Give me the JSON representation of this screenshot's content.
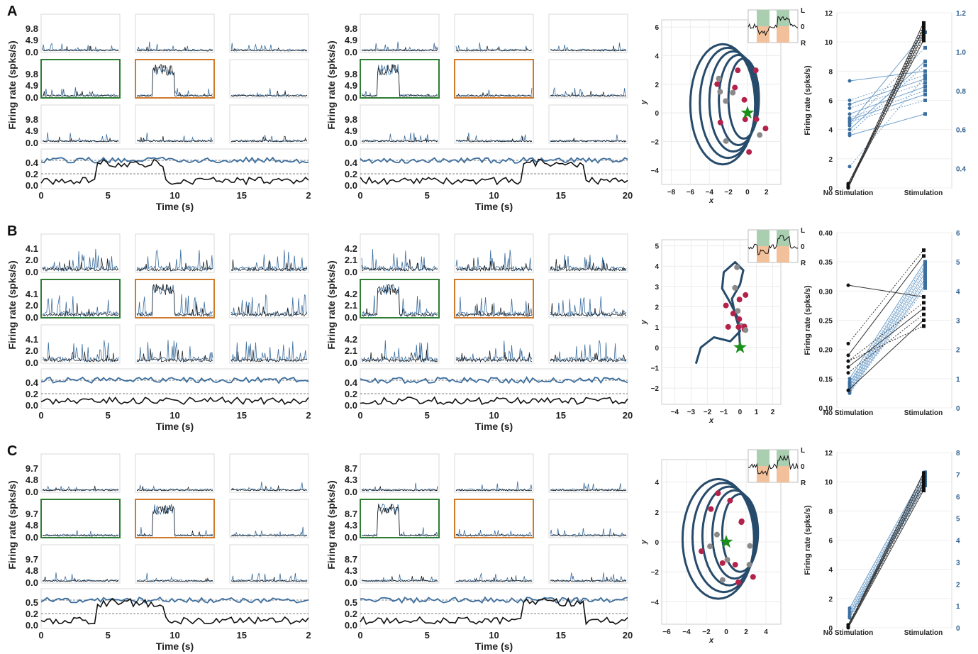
{
  "panels": [
    "A",
    "B",
    "C"
  ],
  "raster": {
    "ylabel": "Firing rate (spks/s)",
    "xlabel": "Time (s)",
    "x_ticks_left": [
      "0",
      "5",
      "10",
      "15",
      "2"
    ],
    "x_ticks_right": [
      "0",
      "5",
      "10",
      "15",
      "20"
    ],
    "bottom_ticks": {
      "A": [
        "0.4",
        "0.2",
        "0.0"
      ],
      "B": [
        "0.4",
        "0.2",
        "0.0"
      ],
      "C": [
        "0.5",
        "0.2",
        "0.0"
      ]
    },
    "grid_ticks": {
      "A_left": [
        "9.8",
        "4.9",
        "0.0"
      ],
      "A_right": [
        "9.8",
        "4.9",
        "0.0"
      ],
      "B_left": [
        "4.1",
        "2.0",
        "0.0"
      ],
      "B_right": [
        "4.2",
        "2.1",
        "0.0"
      ],
      "C_left": [
        "9.7",
        "4.8",
        "0.0"
      ],
      "C_right": [
        "8.7",
        "4.3",
        "0.0"
      ]
    },
    "colors": {
      "blue": "#3c6e9e",
      "black": "#111111",
      "green": "#2e7d32",
      "orange": "#d07a2c"
    }
  },
  "trajectory": {
    "xlabel": "x",
    "ylabel": "y",
    "inset_labels": [
      "L",
      "0",
      "R"
    ],
    "A": {
      "x_ticks": [
        "−8",
        "−6",
        "−4",
        "−2",
        "0",
        "2"
      ],
      "y_ticks": [
        "6",
        "4",
        "2",
        "0",
        "−2",
        "−4"
      ]
    },
    "B": {
      "x_ticks": [
        "−4",
        "−3",
        "−2",
        "−1",
        "0",
        "1",
        "2"
      ],
      "y_ticks": [
        "5",
        "4",
        "3",
        "2",
        "1",
        "0",
        "−1",
        "−2"
      ]
    },
    "C": {
      "x_ticks": [
        "−6",
        "−4",
        "−2",
        "0",
        "2",
        "4"
      ],
      "y_ticks": [
        "4",
        "2",
        "0",
        "−2",
        "−4"
      ]
    },
    "colors": {
      "path": "#274b6b",
      "red_dot": "#b3224a",
      "grey_dot": "#8a8a8a",
      "star": "#1a8f1a"
    }
  },
  "chart_data": [
    {
      "panel": "A",
      "type": "line",
      "categories": [
        "No Stimulation",
        "Stimulation"
      ],
      "ylabel": "Firing rate (spks/s)",
      "left_axis": {
        "ticks": [
          "12",
          "10",
          "8",
          "6",
          "4",
          "2",
          "0"
        ],
        "ylim": [
          0,
          12
        ]
      },
      "right_axis": {
        "ticks": [
          "1.2",
          "1.0",
          "0.8",
          "0.6",
          "0.4"
        ],
        "ylim": [
          0.3,
          1.2
        ]
      },
      "black_pairs": [
        [
          0.1,
          11.3
        ],
        [
          0.2,
          11.1
        ],
        [
          0.0,
          10.9
        ],
        [
          0.1,
          10.7
        ],
        [
          0.3,
          10.5
        ],
        [
          0.2,
          10.3
        ],
        [
          0.1,
          10.1
        ],
        [
          0.0,
          11.0
        ]
      ],
      "blue_pairs": [
        [
          0.85,
          0.9
        ],
        [
          0.75,
          0.88
        ],
        [
          0.73,
          0.86
        ],
        [
          0.71,
          0.84
        ],
        [
          0.68,
          0.82
        ],
        [
          0.66,
          0.8
        ],
        [
          0.65,
          0.78
        ],
        [
          0.64,
          0.75
        ],
        [
          0.63,
          1.1
        ],
        [
          0.62,
          1.02
        ],
        [
          0.6,
          0.95
        ],
        [
          0.58,
          0.93
        ],
        [
          0.57,
          0.68
        ],
        [
          0.41,
          0.87
        ]
      ]
    },
    {
      "panel": "B",
      "type": "line",
      "categories": [
        "No Stimulation",
        "Stimulation"
      ],
      "ylabel": "Firing rate (spks/s)",
      "left_axis": {
        "ticks": [
          "0.40",
          "0.35",
          "0.30",
          "0.25",
          "0.20",
          "0.15",
          "0.10"
        ],
        "ylim": [
          0.1,
          0.4
        ]
      },
      "right_axis": {
        "ticks": [
          "6",
          "5",
          "4",
          "3",
          "2",
          "1",
          "0"
        ],
        "ylim": [
          0,
          6
        ]
      },
      "black_pairs": [
        [
          0.31,
          0.29
        ],
        [
          0.21,
          0.37
        ],
        [
          0.19,
          0.36
        ],
        [
          0.18,
          0.28
        ],
        [
          0.17,
          0.27
        ],
        [
          0.16,
          0.26
        ],
        [
          0.13,
          0.25
        ],
        [
          0.18,
          0.24
        ]
      ],
      "blue_pairs": [
        [
          1.0,
          5.0
        ],
        [
          0.9,
          4.9
        ],
        [
          0.85,
          4.8
        ],
        [
          0.8,
          4.7
        ],
        [
          0.75,
          4.6
        ],
        [
          0.7,
          4.5
        ],
        [
          0.65,
          4.4
        ],
        [
          0.6,
          4.3
        ],
        [
          0.55,
          4.2
        ],
        [
          0.5,
          4.1
        ]
      ]
    },
    {
      "panel": "C",
      "type": "line",
      "categories": [
        "No Stimulation",
        "Stimulation"
      ],
      "ylabel": "Firing rate (spks/s)",
      "left_axis": {
        "ticks": [
          "12",
          "10",
          "8",
          "6",
          "4",
          "2",
          "0"
        ],
        "ylim": [
          0,
          12
        ]
      },
      "right_axis": {
        "ticks": [
          "8",
          "7",
          "6",
          "5",
          "4",
          "3",
          "2",
          "1",
          "0"
        ],
        "ylim": [
          0,
          8
        ]
      },
      "black_pairs": [
        [
          0.1,
          10.6
        ],
        [
          0.2,
          10.4
        ],
        [
          0.1,
          10.2
        ],
        [
          0.0,
          10.0
        ],
        [
          0.2,
          9.8
        ],
        [
          0.1,
          9.6
        ],
        [
          0.0,
          9.4
        ]
      ],
      "blue_pairs": [
        [
          0.9,
          7.1
        ],
        [
          0.8,
          7.0
        ],
        [
          0.7,
          6.9
        ],
        [
          0.6,
          6.8
        ],
        [
          0.55,
          6.7
        ],
        [
          0.5,
          6.6
        ],
        [
          0.45,
          6.5
        ]
      ]
    }
  ]
}
